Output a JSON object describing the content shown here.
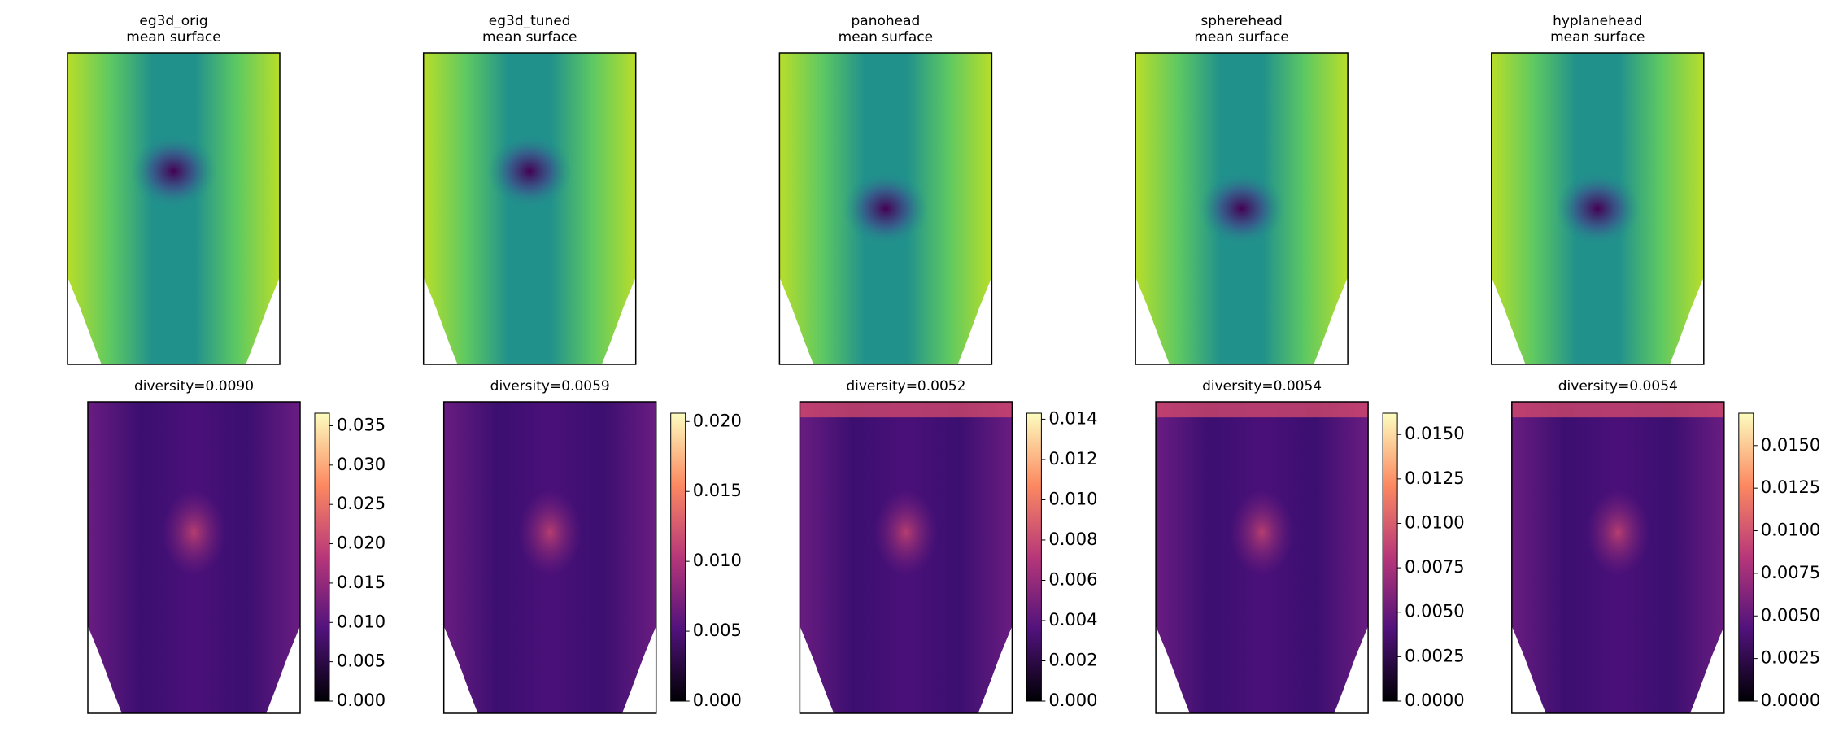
{
  "chart_data": [
    {
      "type": "heatmap",
      "title": "eg3d_orig",
      "subtitle": "mean surface",
      "cmap": "viridis"
    },
    {
      "type": "heatmap",
      "title": "eg3d_tuned",
      "subtitle": "mean surface",
      "cmap": "viridis"
    },
    {
      "type": "heatmap",
      "title": "panohead",
      "subtitle": "mean surface",
      "cmap": "viridis"
    },
    {
      "type": "heatmap",
      "title": "spherehead",
      "subtitle": "mean surface",
      "cmap": "viridis"
    },
    {
      "type": "heatmap",
      "title": "hyplanehead",
      "subtitle": "mean surface",
      "cmap": "viridis"
    },
    {
      "type": "heatmap",
      "title": "diversity=0.0090",
      "cmap": "magma",
      "clim": [
        0,
        0.0366
      ],
      "cticks": [
        {
          "value": 0,
          "label": "0.000"
        },
        {
          "value": 0.005,
          "label": "0.005"
        },
        {
          "value": 0.01,
          "label": "0.010"
        },
        {
          "value": 0.015,
          "label": "0.015"
        },
        {
          "value": 0.02,
          "label": "0.020"
        },
        {
          "value": 0.025,
          "label": "0.025"
        },
        {
          "value": 0.03,
          "label": "0.030"
        },
        {
          "value": 0.035,
          "label": "0.035"
        }
      ]
    },
    {
      "type": "heatmap",
      "title": "diversity=0.0059",
      "cmap": "magma",
      "clim": [
        0,
        0.0206
      ],
      "cticks": [
        {
          "value": 0,
          "label": "0.000"
        },
        {
          "value": 0.005,
          "label": "0.005"
        },
        {
          "value": 0.01,
          "label": "0.010"
        },
        {
          "value": 0.015,
          "label": "0.015"
        },
        {
          "value": 0.02,
          "label": "0.020"
        }
      ]
    },
    {
      "type": "heatmap",
      "title": "diversity=0.0052",
      "cmap": "magma",
      "clim": [
        0,
        0.0143
      ],
      "cticks": [
        {
          "value": 0,
          "label": "0.000"
        },
        {
          "value": 0.002,
          "label": "0.002"
        },
        {
          "value": 0.004,
          "label": "0.004"
        },
        {
          "value": 0.006,
          "label": "0.006"
        },
        {
          "value": 0.008,
          "label": "0.008"
        },
        {
          "value": 0.01,
          "label": "0.010"
        },
        {
          "value": 0.012,
          "label": "0.012"
        },
        {
          "value": 0.014,
          "label": "0.014"
        }
      ]
    },
    {
      "type": "heatmap",
      "title": "diversity=0.0054",
      "cmap": "magma",
      "clim": [
        0,
        0.0162
      ],
      "cticks": [
        {
          "value": 0,
          "label": "0.0000"
        },
        {
          "value": 0.0025,
          "label": "0.0025"
        },
        {
          "value": 0.005,
          "label": "0.0050"
        },
        {
          "value": 0.0075,
          "label": "0.0075"
        },
        {
          "value": 0.01,
          "label": "0.0100"
        },
        {
          "value": 0.0125,
          "label": "0.0125"
        },
        {
          "value": 0.015,
          "label": "0.0150"
        }
      ]
    },
    {
      "type": "heatmap",
      "title": "diversity=0.0054",
      "cmap": "magma",
      "clim": [
        0,
        0.0169
      ],
      "cticks": [
        {
          "value": 0,
          "label": "0.0000"
        },
        {
          "value": 0.0025,
          "label": "0.0025"
        },
        {
          "value": 0.005,
          "label": "0.0050"
        },
        {
          "value": 0.0075,
          "label": "0.0075"
        },
        {
          "value": 0.01,
          "label": "0.0100"
        },
        {
          "value": 0.0125,
          "label": "0.0125"
        },
        {
          "value": 0.015,
          "label": "0.0150"
        }
      ]
    }
  ]
}
